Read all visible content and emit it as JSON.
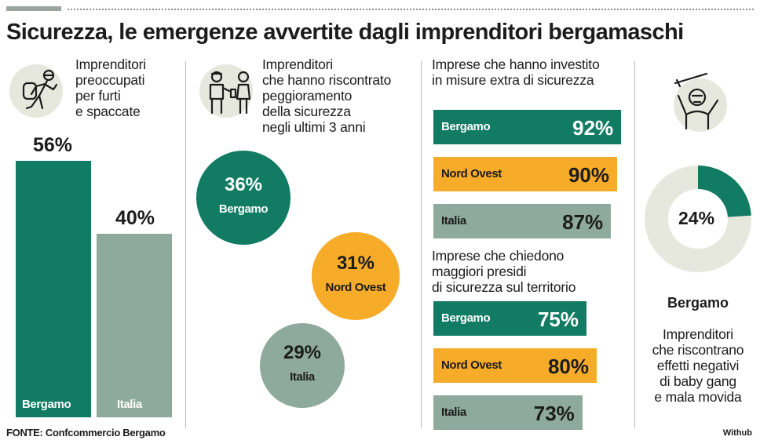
{
  "title": "Sicurezza, le emergenze avvertite dagli imprenditori bergamaschi",
  "colors": {
    "green": "#117b63",
    "orange": "#f6ab29",
    "grey": "#8ea99e",
    "light": "#e6e7dd"
  },
  "panel1": {
    "label": "Imprenditori\npreoccupati\nper furti\ne spaccate",
    "icon": "thief-icon"
  },
  "panel2": {
    "label": "Imprenditori\nche hanno riscontrato\npeggioramento\ndella sicurezza\nnegli ultimi 3 anni",
    "icon": "people-icon"
  },
  "panel3": {
    "label_a": "Imprese che hanno investito\nin misure extra di sicurezza",
    "label_b": "Imprese che chiedono\nmaggiori presidi\ndi sicurezza sul territorio"
  },
  "panel4": {
    "icon": "baby-gang-icon",
    "region": "Bergamo",
    "label": "Imprenditori\nche riscontrano\neffetti negativi\ndi baby gang\ne mala movida"
  },
  "chart_data": [
    {
      "type": "bar",
      "categories": [
        "Bergamo",
        "Italia"
      ],
      "values": [
        56,
        40
      ],
      "value_labels": [
        "56%",
        "40%"
      ],
      "ylim": [
        0,
        100
      ]
    },
    {
      "type": "bubble",
      "categories": [
        "Bergamo",
        "Nord Ovest",
        "Italia"
      ],
      "values": [
        36,
        31,
        29
      ],
      "value_labels": [
        "36%",
        "31%",
        "29%"
      ]
    },
    {
      "type": "bar",
      "orientation": "horizontal",
      "categories": [
        "Bergamo",
        "Nord Ovest",
        "Italia"
      ],
      "values": [
        92,
        90,
        87
      ],
      "value_labels": [
        "92%",
        "90%",
        "87%"
      ]
    },
    {
      "type": "bar",
      "orientation": "horizontal",
      "categories": [
        "Bergamo",
        "Nord Ovest",
        "Italia"
      ],
      "values": [
        75,
        80,
        73
      ],
      "value_labels": [
        "75%",
        "80%",
        "73%"
      ]
    },
    {
      "type": "pie",
      "categories": [
        "Bergamo"
      ],
      "values": [
        24
      ],
      "value_labels": [
        "24%"
      ]
    }
  ],
  "source": "FONTE: Confcommercio Bergamo",
  "credit": "Withub"
}
